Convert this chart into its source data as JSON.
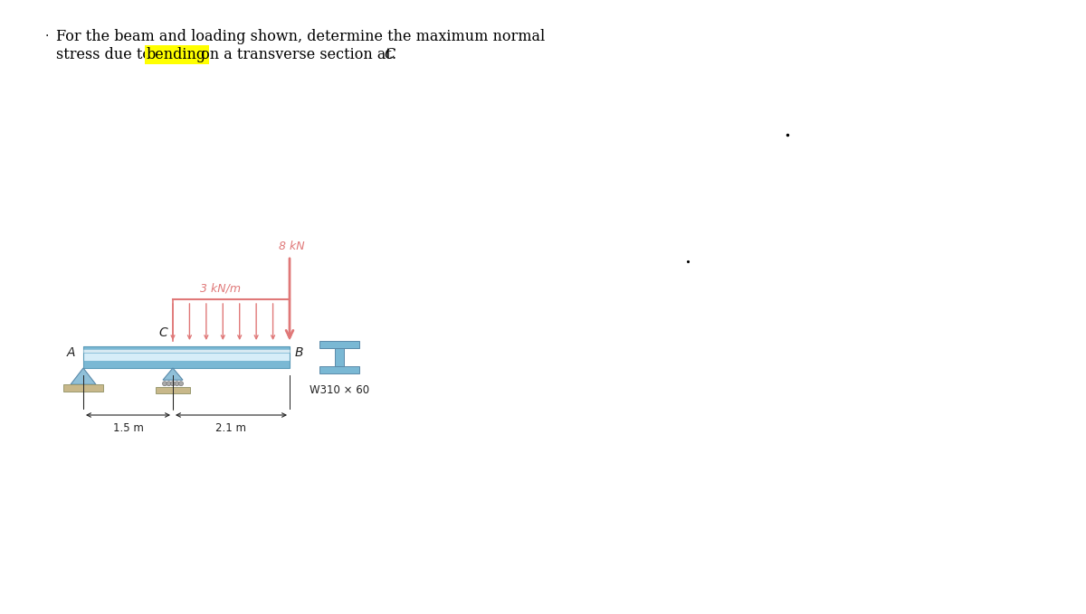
{
  "beam_color_top": "#8bbfd8",
  "beam_color_mid": "#cce5f2",
  "beam_color_bot": "#8bbfd8",
  "beam_edge_color": "#5a9ab8",
  "support_tri_color": "#90c0d8",
  "support_base_color": "#c8b88a",
  "load_color": "#e07878",
  "ibeam_color": "#7ab8d4",
  "ibeam_edge": "#5a8aaa",
  "dim_color": "#222222",
  "text_color": "#222222",
  "highlight_color": "#ffff00",
  "background_color": "#ffffff",
  "point_load_label": "8 kN",
  "dist_load_label": "3 kN/m",
  "label_A": "A",
  "label_B": "B",
  "label_C": "C",
  "dim_1p5": "1.5 m",
  "dim_2p1": "2.1 m",
  "section_label": "W310 × 60"
}
